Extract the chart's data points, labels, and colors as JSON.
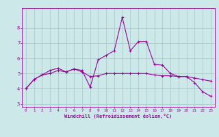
{
  "xlabel": "Windchill (Refroidissement éolien,°C)",
  "x_values": [
    0,
    1,
    2,
    3,
    4,
    5,
    6,
    7,
    8,
    9,
    10,
    11,
    12,
    13,
    14,
    15,
    16,
    17,
    18,
    19,
    20,
    21,
    22,
    23
  ],
  "curve1": [
    4.0,
    4.6,
    4.9,
    5.0,
    5.2,
    5.1,
    5.3,
    5.1,
    4.8,
    4.85,
    5.0,
    5.0,
    5.0,
    5.0,
    5.0,
    5.0,
    4.9,
    4.85,
    4.85,
    4.8,
    4.8,
    4.7,
    4.6,
    4.5
  ],
  "curve2": [
    4.0,
    4.6,
    4.9,
    5.2,
    5.35,
    5.1,
    5.3,
    5.2,
    4.1,
    5.9,
    6.2,
    6.5,
    8.7,
    6.5,
    7.1,
    7.1,
    5.6,
    5.55,
    5.0,
    4.8,
    4.8,
    4.4,
    3.8,
    3.5
  ],
  "color": "#990099",
  "bg_color": "#cce8e8",
  "grid_color": "#aacccc",
  "ylim": [
    2.8,
    9.3
  ],
  "xlim": [
    -0.5,
    23.5
  ],
  "yticks": [
    3,
    4,
    5,
    6,
    7,
    8
  ]
}
